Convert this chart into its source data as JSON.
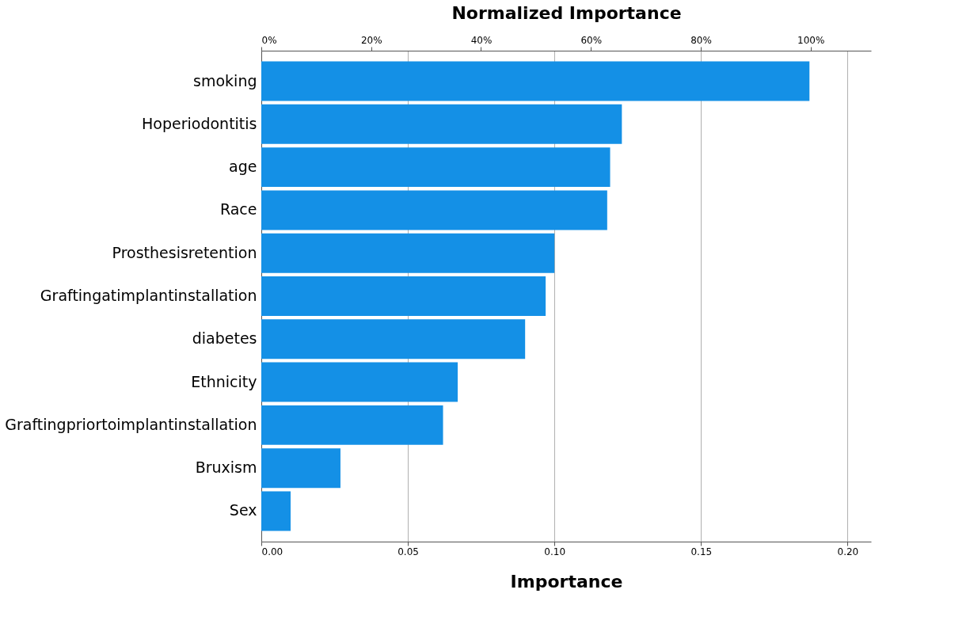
{
  "chart_data": {
    "type": "bar",
    "orientation": "horizontal",
    "xlabel": "Importance",
    "x2label": "Normalized Importance",
    "categories": [
      "smoking",
      "Hoperiodontitis",
      "age",
      "Race",
      "Prosthesisretention",
      "Graftingatimplantinstallation",
      "diabetes",
      "Ethnicity",
      "Graftingpriortoimplantinstallation",
      "Bruxism",
      "Sex"
    ],
    "values": [
      0.187,
      0.123,
      0.119,
      0.118,
      0.1,
      0.097,
      0.09,
      0.067,
      0.062,
      0.027,
      0.01
    ],
    "color": "#1490e6",
    "xlim": [
      0,
      0.208
    ],
    "xticks": [
      {
        "value": 0,
        "label": "0.00"
      },
      {
        "value": 0.05,
        "label": "0.05"
      },
      {
        "value": 0.1,
        "label": "0.10"
      },
      {
        "value": 0.15,
        "label": "0.15"
      },
      {
        "value": 0.2,
        "label": "0.20"
      }
    ],
    "x2lim": [
      0,
      111
    ],
    "x2ticks": [
      {
        "value": 0,
        "label": "0%"
      },
      {
        "value": 20,
        "label": "20%"
      },
      {
        "value": 40,
        "label": "40%"
      },
      {
        "value": 60,
        "label": "60%"
      },
      {
        "value": 80,
        "label": "80%"
      },
      {
        "value": 100,
        "label": "100%"
      }
    ],
    "grid": "x"
  }
}
